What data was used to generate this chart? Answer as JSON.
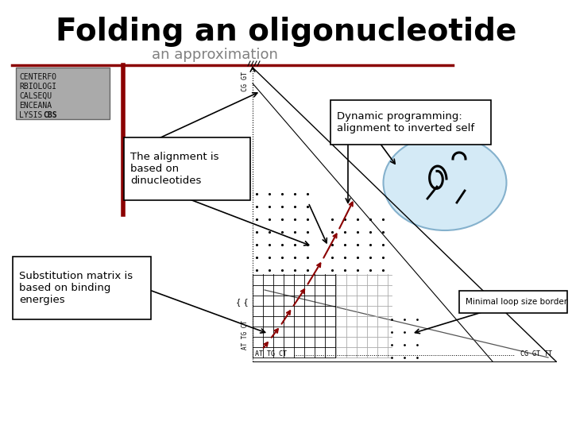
{
  "title": "Folding an oligonucleotide",
  "subtitle": "an approximation",
  "bg_color": "#ffffff",
  "title_color": "#000000",
  "subtitle_color": "#808080",
  "dark_red": "#8B0000",
  "annotation1": "The alignment is\nbased on\ndinucleotides",
  "annotation2": "Substitution matrix is\nbased on binding\nenergies",
  "annotation3": "Dynamic programming:\nalignment to inverted self",
  "annotation4": "Minimal loop size border",
  "logo_text_lines": [
    "CENTERFO",
    "RBIOLOGI",
    "CALSEQU",
    "ENCEANA",
    "LYSIS CBS"
  ],
  "logo_color": "#aaaaaa"
}
